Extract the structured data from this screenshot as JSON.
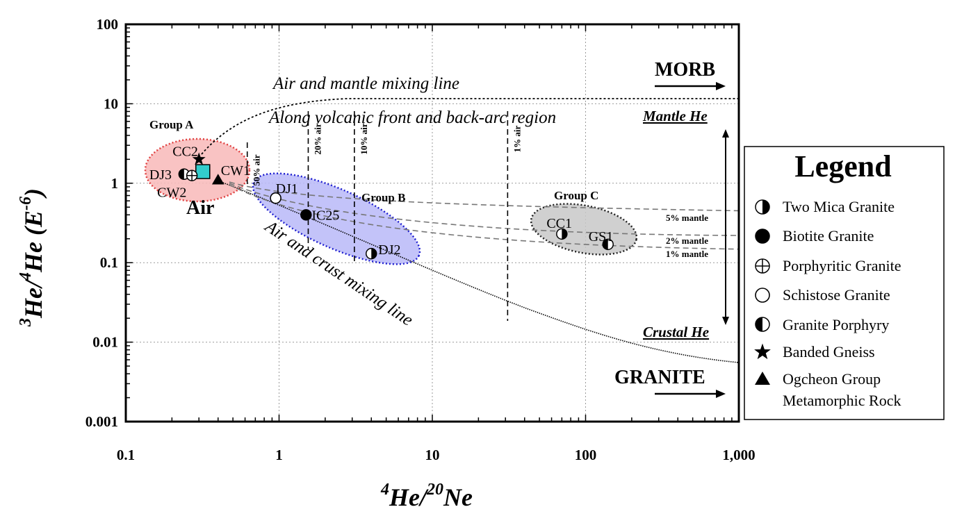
{
  "chart_data": {
    "type": "scatter",
    "x_scale": "log",
    "y_scale": "log",
    "xlim": [
      0.1,
      1000
    ],
    "ylim": [
      0.001,
      100
    ],
    "grid": true,
    "x_ticks": [
      "0.1",
      "1",
      "10",
      "100",
      "1,000"
    ],
    "y_ticks": [
      "0.001",
      "0.01",
      "0.1",
      "1",
      "10",
      "100"
    ],
    "xlabel": {
      "base": "He/",
      "sup1": "4",
      "sup2": "20",
      "tail": "Ne"
    },
    "ylabel": {
      "sup1": "3",
      "mid1": "He/",
      "sup2": "4",
      "mid2": "He (E",
      "sup3": "-6",
      "tail": ")"
    },
    "points": [
      {
        "label": "DJ3",
        "x": 0.24,
        "y": 1.3,
        "type": "Granite Porphyry"
      },
      {
        "label": "CW2",
        "x": 0.27,
        "y": 1.25,
        "type": "Porphyritic Granite"
      },
      {
        "label": "CC2",
        "x": 0.3,
        "y": 2.0,
        "type": "Banded Gneiss"
      },
      {
        "label": "CW1",
        "x": 0.4,
        "y": 1.1,
        "type": "Ogcheon Group Metamorphic Rock"
      },
      {
        "label": "DJ1",
        "x": 0.95,
        "y": 0.65,
        "type": "Schistose Granite"
      },
      {
        "label": "IC25",
        "x": 1.5,
        "y": 0.4,
        "type": "Biotite Granite"
      },
      {
        "label": "DJ2",
        "x": 4.0,
        "y": 0.13,
        "type": "Two Mica Granite"
      },
      {
        "label": "CC1",
        "x": 70,
        "y": 0.23,
        "type": "Two Mica Granite"
      },
      {
        "label": "GS1",
        "x": 140,
        "y": 0.17,
        "type": "Granite Porphyry"
      }
    ],
    "air_point": {
      "label": "Air",
      "x": 0.318,
      "y": 1.4,
      "color": "#33cccc"
    },
    "groups": [
      {
        "label": "Group A",
        "color": "#f8b8b8",
        "edge": "#e04040"
      },
      {
        "label": "Group B",
        "color": "#b8b8f8",
        "edge": "#2020d0"
      },
      {
        "label": "Group C",
        "color": "#c8c8c8",
        "edge": "#202020"
      }
    ],
    "air_fractions": [
      {
        "label": "50% air",
        "x": 0.62
      },
      {
        "label": "20% air",
        "x": 1.55
      },
      {
        "label": "10% air",
        "x": 3.1
      },
      {
        "label": "1% air",
        "x": 31
      }
    ],
    "mantle_fractions": [
      {
        "label": "5% mantle",
        "y_end": 0.45
      },
      {
        "label": "2% mantle",
        "y_end": 0.22
      },
      {
        "label": "1% mantle",
        "y_end": 0.148
      }
    ],
    "annotations": {
      "mantle_line": "Air and mantle mixing line",
      "volcanic": "Along volcanic front and back-arc region",
      "crust_line": "Air and crust mixing line",
      "morb": "MORB",
      "granite": "GRANITE",
      "mantle_he": "Mantle He",
      "crustal_he": "Crustal He"
    },
    "legend": {
      "title": "Legend",
      "items": [
        "Two Mica Granite",
        "Biotite Granite",
        "Porphyritic Granite",
        "Schistose Granite",
        "Granite Porphyry",
        "Banded Gneiss",
        "Ogcheon Group",
        "Metamorphic Rock"
      ]
    }
  }
}
